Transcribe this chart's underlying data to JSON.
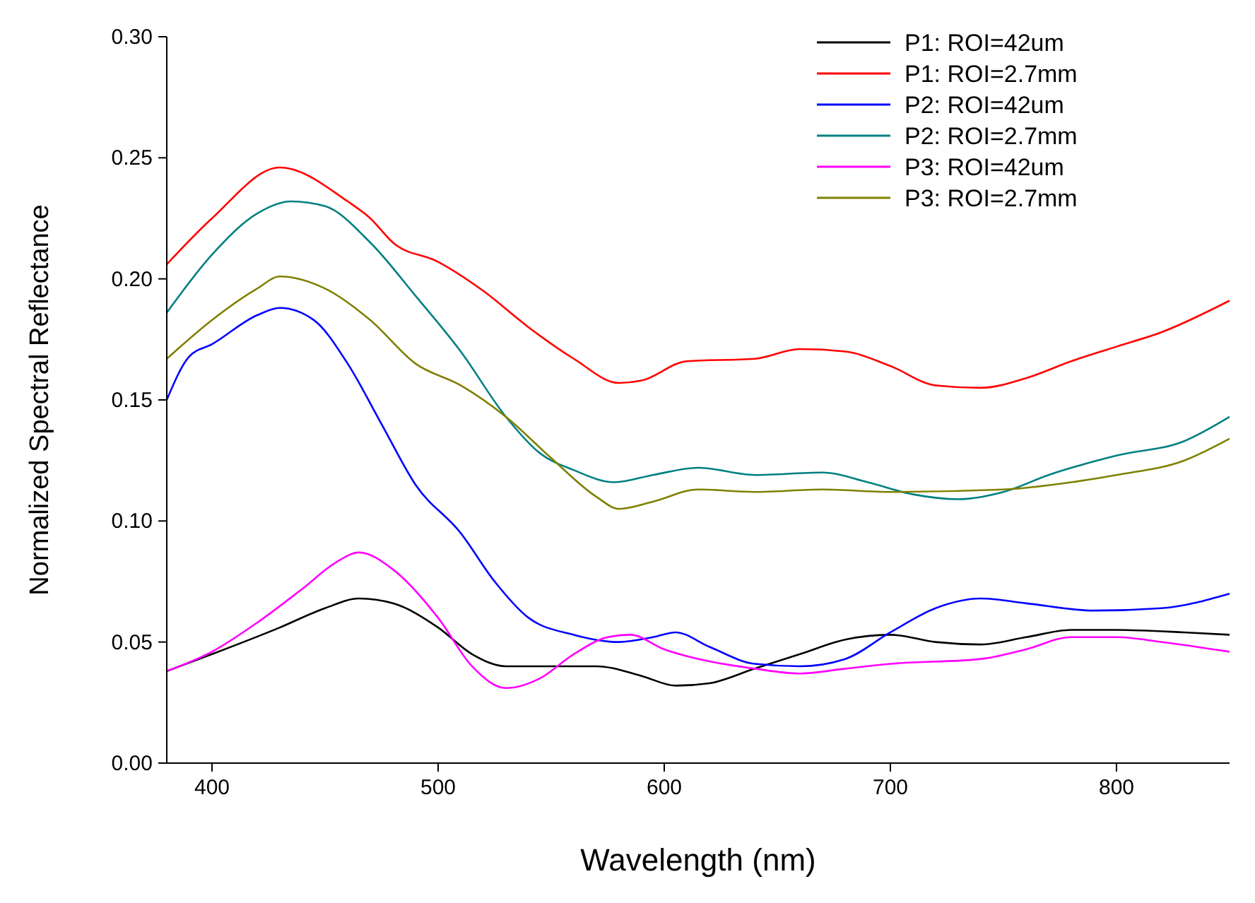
{
  "chart_data": {
    "type": "line",
    "xlabel": "Wavelength (nm)",
    "ylabel": "Normalized Spectral Reflectance",
    "xlim": [
      380,
      850
    ],
    "ylim": [
      0,
      0.3
    ],
    "xticks": [
      400,
      500,
      600,
      700,
      800
    ],
    "yticks": [
      {
        "value": 0,
        "label": "0.00"
      },
      {
        "value": 0.05,
        "label": "0.05"
      },
      {
        "value": 0.1,
        "label": "0.10"
      },
      {
        "value": 0.15,
        "label": "0.15"
      },
      {
        "value": 0.2,
        "label": "0.20"
      },
      {
        "value": 0.25,
        "label": "0.25"
      },
      {
        "value": 0.3,
        "label": "0.30"
      }
    ],
    "grid": false,
    "legend": "top right",
    "marker": "none",
    "line_style": "solid",
    "series": [
      {
        "name": "P1: ROI=42um",
        "color": "#000000",
        "x": [
          380,
          400,
          430,
          450,
          465,
          480,
          500,
          515,
          530,
          550,
          570,
          590,
          605,
          620,
          640,
          660,
          680,
          700,
          720,
          740,
          760,
          780,
          800,
          830,
          850
        ],
        "values": [
          0.038,
          0.045,
          0.056,
          0.064,
          0.068,
          0.066,
          0.056,
          0.045,
          0.04,
          0.04,
          0.04,
          0.036,
          0.032,
          0.033,
          0.039,
          0.045,
          0.051,
          0.053,
          0.05,
          0.049,
          0.052,
          0.055,
          0.055,
          0.054,
          0.053
        ]
      },
      {
        "name": "P1: ROI=2.7mm",
        "color": "#ff0000",
        "x": [
          380,
          400,
          430,
          460,
          470,
          480,
          500,
          520,
          540,
          560,
          580,
          590,
          610,
          640,
          660,
          680,
          700,
          720,
          740,
          760,
          780,
          800,
          820,
          850
        ],
        "values": [
          0.206,
          0.225,
          0.246,
          0.232,
          0.225,
          0.215,
          0.207,
          0.195,
          0.18,
          0.167,
          0.157,
          0.158,
          0.166,
          0.167,
          0.171,
          0.17,
          0.164,
          0.156,
          0.155,
          0.159,
          0.166,
          0.172,
          0.178,
          0.191
        ]
      },
      {
        "name": "P2: ROI=42um",
        "color": "#0000ff",
        "x": [
          380,
          390,
          400,
          420,
          430,
          445,
          460,
          475,
          490,
          510,
          525,
          540,
          560,
          580,
          595,
          605,
          620,
          640,
          660,
          680,
          700,
          720,
          740,
          760,
          790,
          820,
          850
        ],
        "values": [
          0.15,
          0.168,
          0.173,
          0.185,
          0.188,
          0.183,
          0.165,
          0.14,
          0.115,
          0.095,
          0.075,
          0.06,
          0.053,
          0.05,
          0.052,
          0.054,
          0.048,
          0.041,
          0.04,
          0.043,
          0.054,
          0.064,
          0.068,
          0.066,
          0.063,
          0.064,
          0.07
        ]
      },
      {
        "name": "P2: ROI=2.7mm",
        "color": "#008080",
        "x": [
          380,
          400,
          420,
          435,
          450,
          470,
          490,
          510,
          530,
          545,
          560,
          578,
          595,
          615,
          640,
          670,
          690,
          710,
          730,
          750,
          770,
          800,
          830,
          850
        ],
        "values": [
          0.186,
          0.21,
          0.227,
          0.232,
          0.23,
          0.215,
          0.193,
          0.17,
          0.143,
          0.128,
          0.121,
          0.116,
          0.119,
          0.122,
          0.119,
          0.12,
          0.116,
          0.111,
          0.109,
          0.112,
          0.119,
          0.127,
          0.133,
          0.143
        ]
      },
      {
        "name": "P3: ROI=42um",
        "color": "#ff00ff",
        "x": [
          380,
          400,
          420,
          440,
          455,
          465,
          480,
          500,
          515,
          530,
          545,
          560,
          575,
          585,
          600,
          620,
          640,
          660,
          680,
          700,
          740,
          760,
          780,
          800,
          820,
          850
        ],
        "values": [
          0.038,
          0.046,
          0.058,
          0.072,
          0.083,
          0.087,
          0.08,
          0.06,
          0.04,
          0.031,
          0.035,
          0.045,
          0.052,
          0.053,
          0.047,
          0.042,
          0.039,
          0.037,
          0.039,
          0.041,
          0.043,
          0.047,
          0.052,
          0.052,
          0.05,
          0.046
        ]
      },
      {
        "name": "P3: ROI=2.7mm",
        "color": "#808000",
        "x": [
          380,
          400,
          420,
          430,
          450,
          470,
          490,
          510,
          530,
          550,
          570,
          580,
          595,
          615,
          640,
          670,
          700,
          750,
          780,
          800,
          830,
          850
        ],
        "values": [
          0.167,
          0.183,
          0.196,
          0.201,
          0.196,
          0.183,
          0.165,
          0.156,
          0.143,
          0.126,
          0.11,
          0.105,
          0.108,
          0.113,
          0.112,
          0.113,
          0.112,
          0.113,
          0.116,
          0.119,
          0.125,
          0.134
        ]
      }
    ]
  }
}
